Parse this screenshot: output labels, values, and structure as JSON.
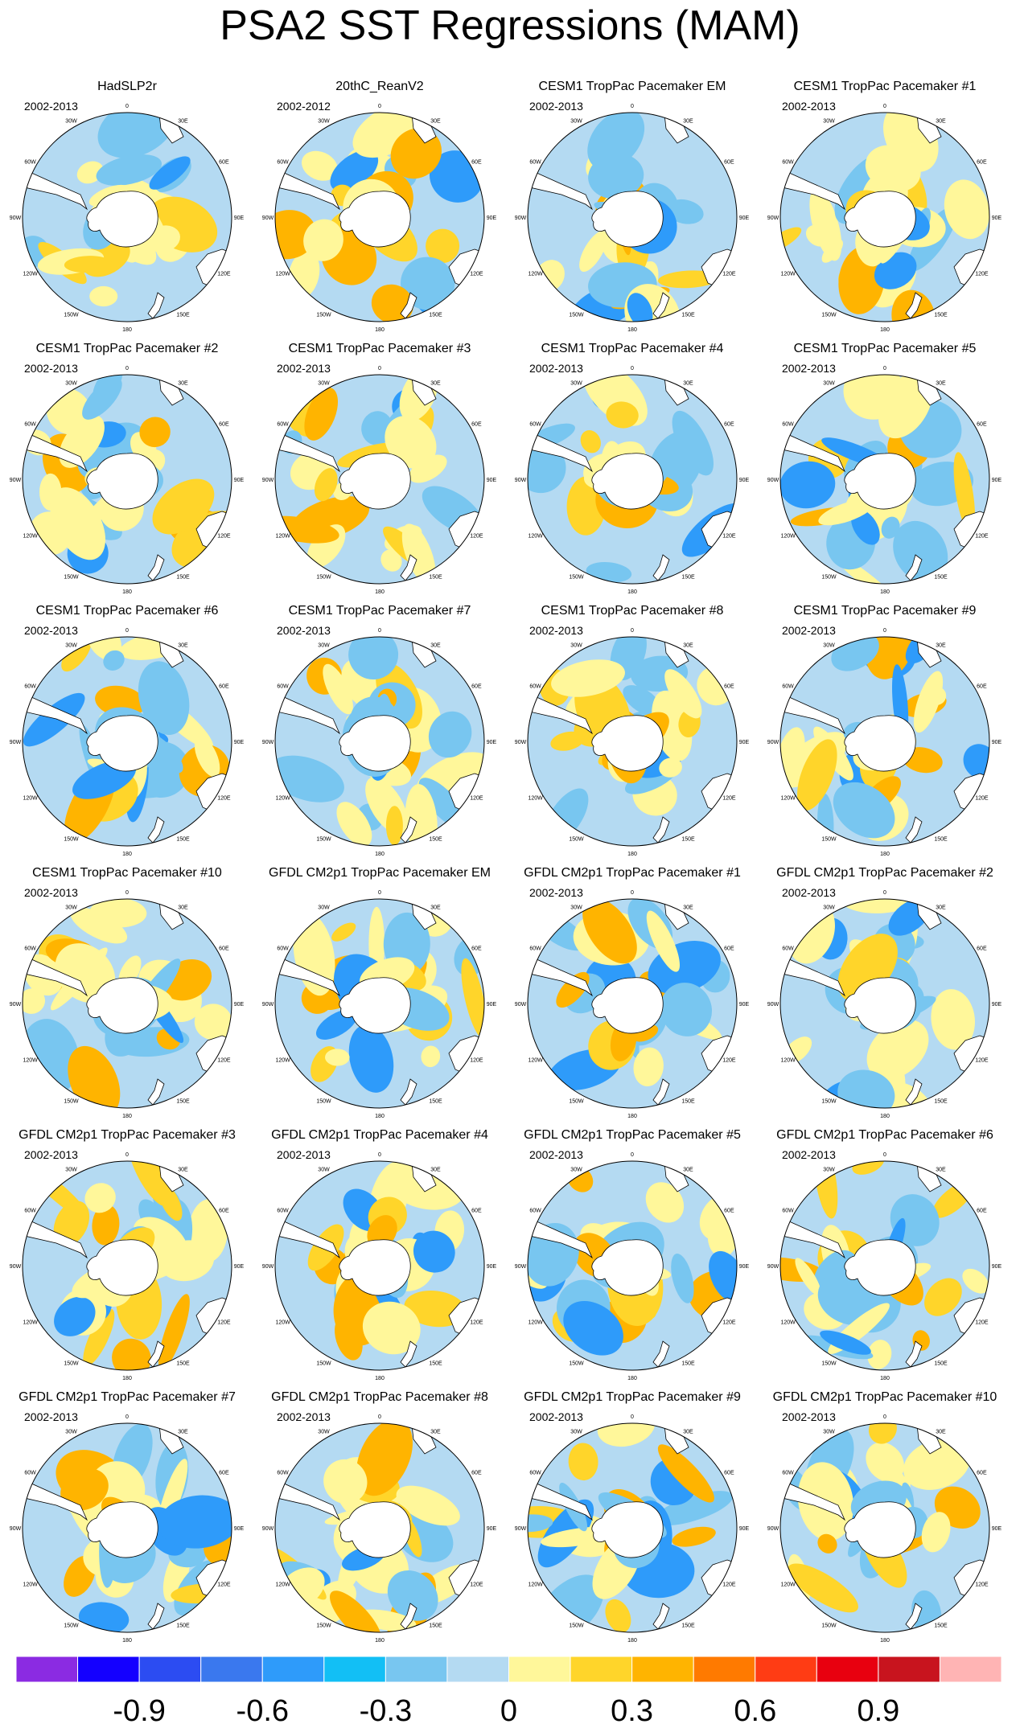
{
  "figure": {
    "title": "PSA2 SST Regressions (MAM)"
  },
  "chart_data": {
    "type": "polar-stereographic contour map panels",
    "variable": "SST regression onto PSA2",
    "season": "MAM",
    "longitude_labels": [
      "0",
      "30E",
      "60E",
      "90E",
      "120E",
      "150E",
      "180",
      "150W",
      "120W",
      "90W",
      "60W",
      "30W"
    ],
    "panels": [
      {
        "title": "HadSLP2r",
        "period": "2002-2013"
      },
      {
        "title": "20thC_ReanV2",
        "period": "2002-2012"
      },
      {
        "title": "CESM1 TropPac Pacemaker EM",
        "period": "2002-2013"
      },
      {
        "title": "CESM1 TropPac Pacemaker #1",
        "period": "2002-2013"
      },
      {
        "title": "CESM1 TropPac Pacemaker #2",
        "period": "2002-2013"
      },
      {
        "title": "CESM1 TropPac Pacemaker #3",
        "period": "2002-2013"
      },
      {
        "title": "CESM1 TropPac Pacemaker #4",
        "period": "2002-2013"
      },
      {
        "title": "CESM1 TropPac Pacemaker #5",
        "period": "2002-2013"
      },
      {
        "title": "CESM1 TropPac Pacemaker #6",
        "period": "2002-2013"
      },
      {
        "title": "CESM1 TropPac Pacemaker #7",
        "period": "2002-2013"
      },
      {
        "title": "CESM1 TropPac Pacemaker #8",
        "period": "2002-2013"
      },
      {
        "title": "CESM1 TropPac Pacemaker #9",
        "period": "2002-2013"
      },
      {
        "title": "CESM1 TropPac Pacemaker #10",
        "period": "2002-2013"
      },
      {
        "title": "GFDL CM2p1 TropPac Pacemaker EM",
        "period": ""
      },
      {
        "title": "GFDL CM2p1 TropPac Pacemaker #1",
        "period": "2002-2013"
      },
      {
        "title": "GFDL CM2p1 TropPac Pacemaker #2",
        "period": "2002-2013"
      },
      {
        "title": "GFDL CM2p1 TropPac Pacemaker #3",
        "period": "2002-2013"
      },
      {
        "title": "GFDL CM2p1 TropPac Pacemaker #4",
        "period": "2002-2013"
      },
      {
        "title": "GFDL CM2p1 TropPac Pacemaker #5",
        "period": "2002-2013"
      },
      {
        "title": "GFDL CM2p1 TropPac Pacemaker #6",
        "period": "2002-2013"
      },
      {
        "title": "GFDL CM2p1 TropPac Pacemaker #7",
        "period": "2002-2013"
      },
      {
        "title": "GFDL CM2p1 TropPac Pacemaker #8",
        "period": "2002-2013"
      },
      {
        "title": "GFDL CM2p1 TropPac Pacemaker #9",
        "period": "2002-2013"
      },
      {
        "title": "GFDL CM2p1 TropPac Pacemaker #10",
        "period": "2002-2013"
      }
    ],
    "colorbar": {
      "colors": [
        "#8b2be2",
        "#1400ff",
        "#2c4cf2",
        "#3a78ee",
        "#2e9bfa",
        "#12bff5",
        "#78c6f0",
        "#b4daf2",
        "#fff79a",
        "#ffd52a",
        "#ffb400",
        "#ff7a00",
        "#ff3c14",
        "#e8000f",
        "#c8141e",
        "#ffb4b4"
      ],
      "tick_labels": [
        "-0.9",
        "-0.6",
        "-0.3",
        "0",
        "0.3",
        "0.6",
        "0.9"
      ]
    }
  }
}
